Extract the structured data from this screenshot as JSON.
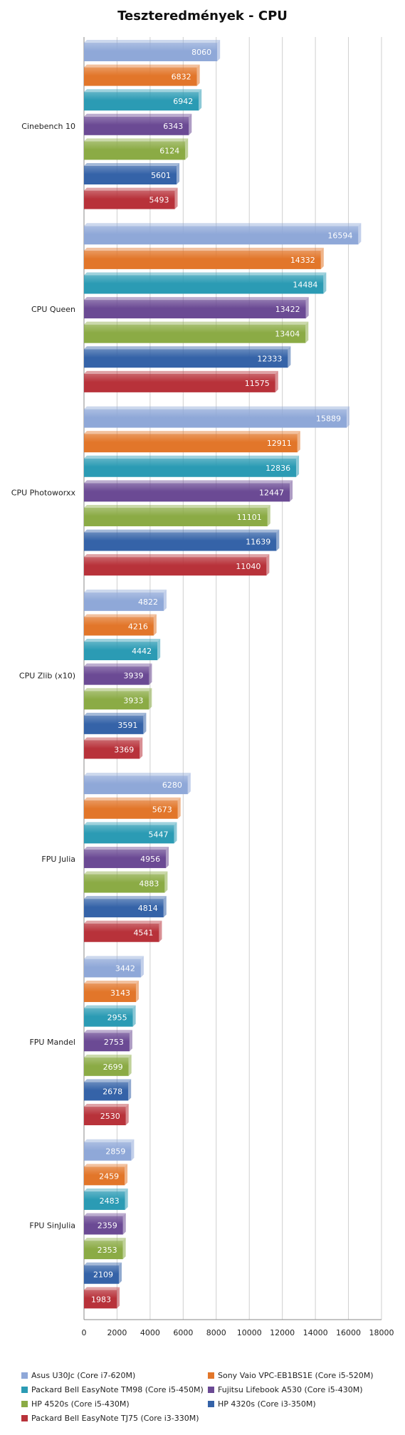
{
  "chart_data": {
    "type": "bar",
    "orientation": "horizontal",
    "title": "Teszteredmények - CPU",
    "categories": [
      "Cinebench 10",
      "CPU Queen",
      "CPU Photoworxx",
      "CPU Zlib (x10)",
      "FPU Julia",
      "FPU Mandel",
      "FPU SinJulia"
    ],
    "xlim": [
      0,
      18000
    ],
    "xticks": [
      0,
      2000,
      4000,
      6000,
      8000,
      10000,
      12000,
      14000,
      16000,
      18000
    ],
    "grid": true,
    "legend_position": "bottom",
    "series": [
      {
        "name": "Asus U30Jc (Core i7-620M)",
        "color": "#8fa8d8",
        "values": [
          8060,
          16594,
          15889,
          4822,
          6280,
          3442,
          2859
        ]
      },
      {
        "name": "Sony Vaio VPC-EB1BS1E (Core i5-520M)",
        "color": "#e2762a",
        "values": [
          6832,
          14332,
          12911,
          4216,
          5673,
          3143,
          2459
        ]
      },
      {
        "name": "Packard Bell EasyNote  TM98 (Core i5-450M)",
        "color": "#2b9bb4",
        "values": [
          6942,
          14484,
          12836,
          4442,
          5447,
          2955,
          2483
        ]
      },
      {
        "name": "Fujitsu Lifebook A530 (Core i5-430M)",
        "color": "#6b4a94",
        "values": [
          6343,
          13422,
          12447,
          3939,
          4956,
          2753,
          2359
        ]
      },
      {
        "name": "HP 4520s (Core i5-430M)",
        "color": "#8bab45",
        "values": [
          6124,
          13404,
          11101,
          3933,
          4883,
          2699,
          2353
        ]
      },
      {
        "name": "HP 4320s (Core i3-350M)",
        "color": "#3563a8",
        "values": [
          5601,
          12333,
          11639,
          3591,
          4814,
          2678,
          2109
        ]
      },
      {
        "name": "Packard Bell EasyNote  TJ75 (Core i3-330M)",
        "color": "#b8323a",
        "values": [
          5493,
          11575,
          11040,
          3369,
          4541,
          2530,
          1983
        ]
      }
    ]
  }
}
